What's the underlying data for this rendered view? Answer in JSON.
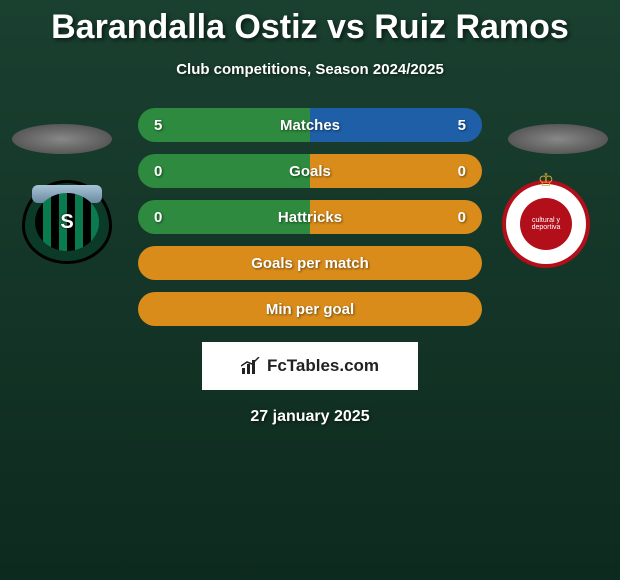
{
  "header": {
    "title": "Barandalla Ostiz vs Ruiz Ramos",
    "subtitle": "Club competitions, Season 2024/2025"
  },
  "colors": {
    "green": "#2d8a3e",
    "orange": "#d98c1a",
    "blue": "#1e5fa8",
    "background_top": "#1a4030",
    "background_bottom": "#0d2a1e",
    "white": "#ffffff"
  },
  "stats": [
    {
      "type": "dual",
      "label": "Matches",
      "left_val": "5",
      "right_val": "5",
      "left_color": "#2d8a3e",
      "right_color": "#1e5fa8"
    },
    {
      "type": "dual",
      "label": "Goals",
      "left_val": "0",
      "right_val": "0",
      "left_color": "#2d8a3e",
      "right_color": "#d98c1a"
    },
    {
      "type": "dual",
      "label": "Hattricks",
      "left_val": "0",
      "right_val": "0",
      "left_color": "#2d8a3e",
      "right_color": "#d98c1a"
    },
    {
      "type": "single",
      "label": "Goals per match",
      "bg_color": "#d98c1a"
    },
    {
      "type": "single",
      "label": "Min per goal",
      "bg_color": "#d98c1a"
    }
  ],
  "players": {
    "left": {
      "club": "Sestao River",
      "badge_letter": "S"
    },
    "right": {
      "club": "Cultural Leonesa",
      "badge_text": "cultural y deportiva"
    }
  },
  "brand": {
    "label": "FcTables.com"
  },
  "date": "27 january 2025",
  "fontsize": {
    "title": 34,
    "subtitle": 15,
    "stat": 15,
    "date": 16,
    "brand": 17
  }
}
